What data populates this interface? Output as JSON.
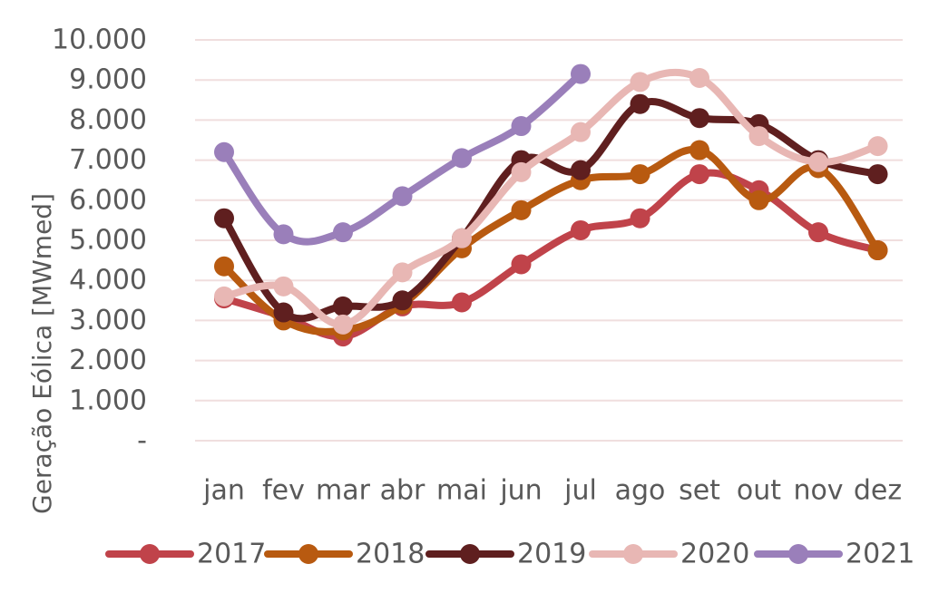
{
  "chart_data": {
    "type": "line",
    "title": "",
    "xlabel": "",
    "ylabel": "Geração Eólica [MWmed]",
    "ylim": [
      0,
      10000
    ],
    "y_ticks": [
      {
        "value": 0,
        "label": "-"
      },
      {
        "value": 1000,
        "label": "1.000"
      },
      {
        "value": 2000,
        "label": "2.000"
      },
      {
        "value": 3000,
        "label": "3.000"
      },
      {
        "value": 4000,
        "label": "4.000"
      },
      {
        "value": 5000,
        "label": "5.000"
      },
      {
        "value": 6000,
        "label": "6.000"
      },
      {
        "value": 7000,
        "label": "7.000"
      },
      {
        "value": 8000,
        "label": "8.000"
      },
      {
        "value": 9000,
        "label": "9.000"
      },
      {
        "value": 10000,
        "label": "10.000"
      }
    ],
    "categories": [
      "jan",
      "fev",
      "mar",
      "abr",
      "mai",
      "jun",
      "jul",
      "ago",
      "set",
      "out",
      "nov",
      "dez"
    ],
    "grid": true,
    "legend_position": "bottom",
    "series": [
      {
        "name": "2017",
        "color": "#c0434a",
        "values": [
          3550,
          3100,
          2600,
          3350,
          3450,
          4400,
          5250,
          5550,
          6650,
          6250,
          5200,
          4750
        ]
      },
      {
        "name": "2018",
        "color": "#b85a10",
        "values": [
          4350,
          3000,
          2750,
          3400,
          4800,
          5750,
          6500,
          6650,
          7250,
          6000,
          6800,
          4750
        ]
      },
      {
        "name": "2019",
        "color": "#5f1f1f",
        "values": [
          5550,
          3200,
          3350,
          3500,
          5050,
          7000,
          6750,
          8400,
          8050,
          7900,
          7000,
          6650
        ]
      },
      {
        "name": "2020",
        "color": "#e8b7b4",
        "values": [
          3600,
          3850,
          2900,
          4200,
          5050,
          6700,
          7700,
          8950,
          9050,
          7600,
          6950,
          7350
        ]
      },
      {
        "name": "2021",
        "color": "#9a7fba",
        "values": [
          7200,
          5150,
          5200,
          6100,
          7050,
          7850,
          9150,
          null,
          null,
          null,
          null,
          null
        ]
      }
    ]
  }
}
